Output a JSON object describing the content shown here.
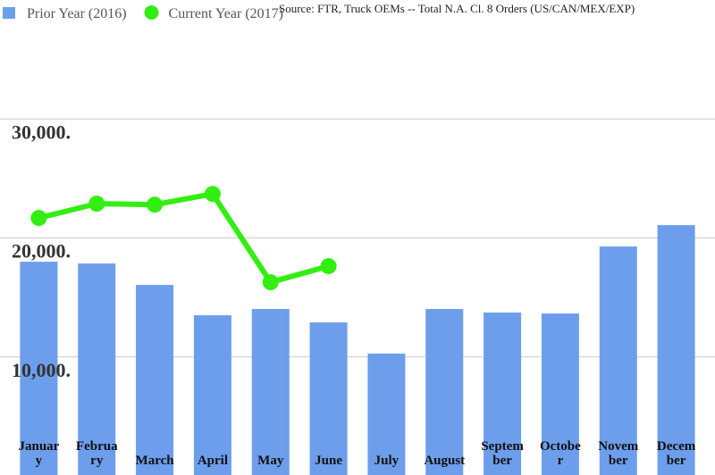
{
  "chart_data": {
    "type": "bar-line",
    "source": "Source: FTR, Truck OEMs -- Total N.A. Cl. 8 Orders (US/CAN/MEX/EXP)",
    "categories": [
      "January",
      "February",
      "March",
      "April",
      "May",
      "June",
      "July",
      "August",
      "September",
      "October",
      "November",
      "December"
    ],
    "series": [
      {
        "name": "Prior Year (2016)",
        "color": "#6d9eeb",
        "kind": "bar",
        "values": [
          18000,
          17850,
          16050,
          13500,
          14030,
          12900,
          10280,
          14030,
          13730,
          13650,
          19280,
          21080
        ]
      },
      {
        "name": "Current Year (2017)",
        "color": "#33ee11",
        "kind": "line",
        "values": [
          21680,
          22880,
          22800,
          23700,
          16280,
          17630,
          null,
          null,
          null,
          null,
          null,
          null
        ]
      }
    ],
    "ylim": [
      0,
      40000
    ],
    "yticks": [
      {
        "value": 10000,
        "label": "10,000."
      },
      {
        "value": 20000,
        "label": "20,000."
      },
      {
        "value": 30000,
        "label": "30,000."
      }
    ],
    "grid": true
  }
}
